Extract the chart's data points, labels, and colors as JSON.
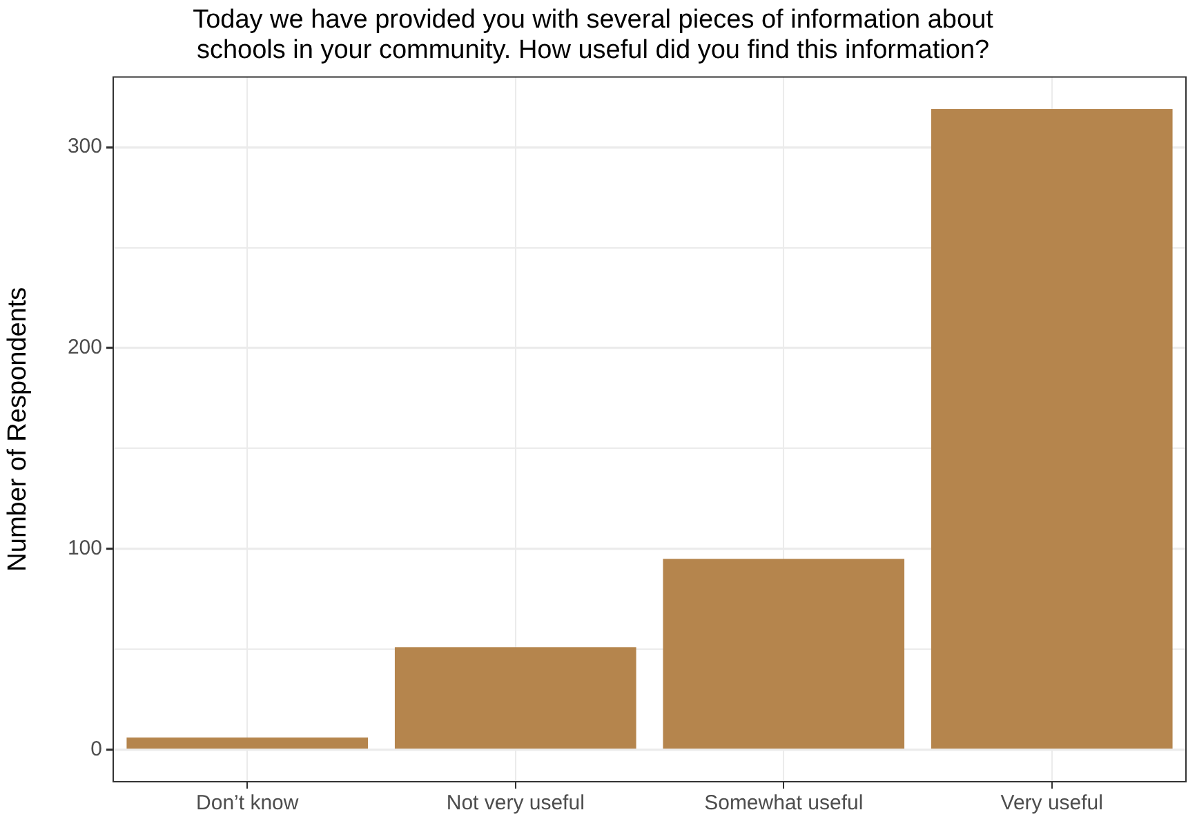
{
  "chart_data": {
    "type": "bar",
    "title": "Today we have provided you with several pieces of information about\nschools in your community. How useful did you find this information?",
    "ylabel": "Number of Respondents",
    "categories": [
      "Don’t know",
      "Not very useful",
      "Somewhat useful",
      "Very useful"
    ],
    "values": [
      6,
      51,
      95,
      319
    ],
    "color": "#b5854d",
    "ylim": [
      -16,
      335
    ],
    "yticks": [
      0,
      {
        "value": 50,
        "label": null
      },
      100,
      {
        "value": 150,
        "label": null
      },
      200,
      {
        "value": 250,
        "label": null
      },
      300
    ],
    "grid": true
  }
}
